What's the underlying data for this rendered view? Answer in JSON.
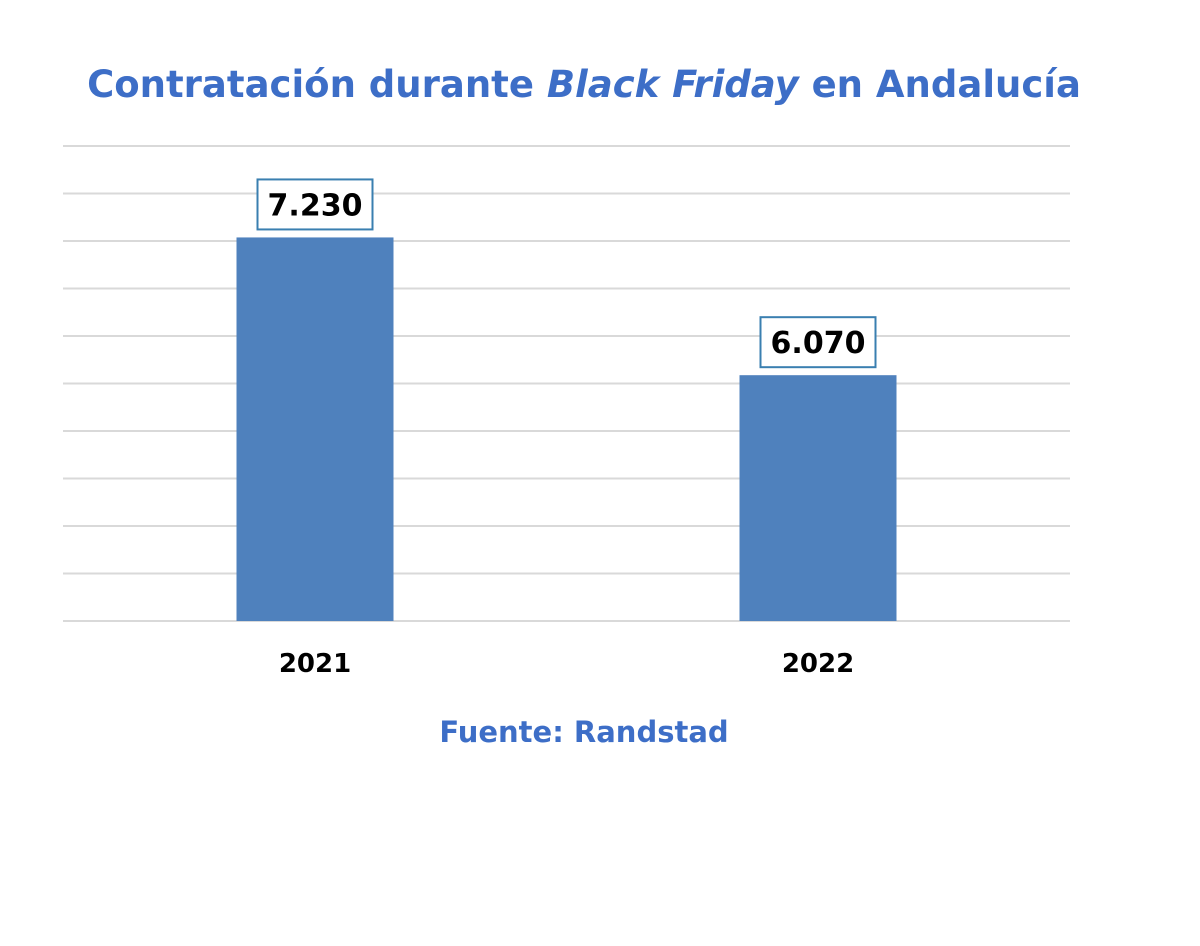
{
  "colors": {
    "title": "#3d6ec7",
    "bar": "#4f81bd",
    "label_border": "#3a7fb0",
    "source": "#3d6ec7"
  },
  "chart_data": {
    "type": "bar",
    "title_parts": {
      "before": "Contratación durante ",
      "italic": "Black Friday",
      "after": " en Andalucía"
    },
    "categories": [
      "2021",
      "2022"
    ],
    "values": [
      7230,
      6070
    ],
    "data_labels": [
      "7.230",
      "6.070"
    ],
    "ylim": [
      4000,
      8000
    ],
    "gridlines": true,
    "xlabel": "",
    "ylabel": "",
    "source": "Fuente: Randstad"
  }
}
